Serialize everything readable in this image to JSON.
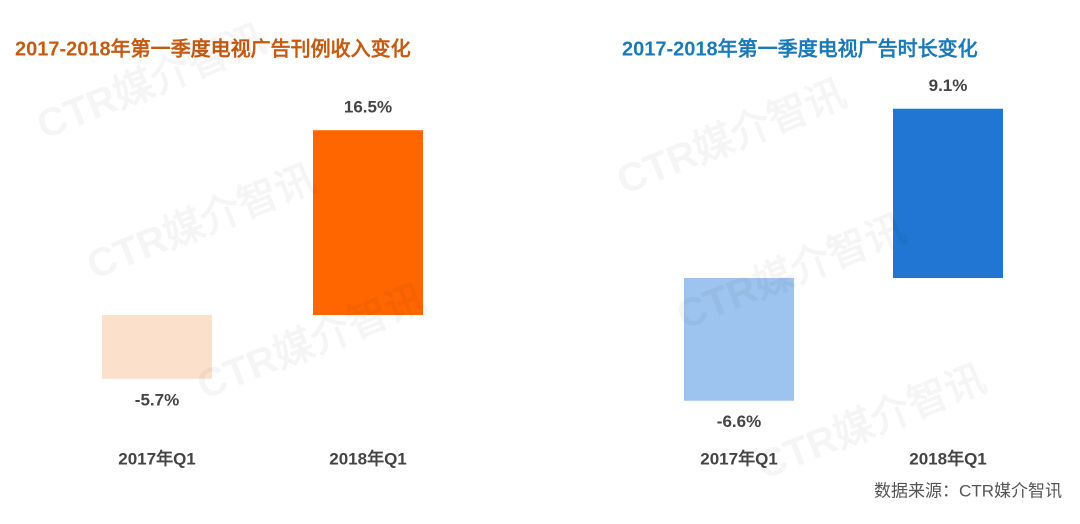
{
  "chart_data": [
    {
      "type": "bar",
      "title": "2017-2018年第一季度电视广告刊例收入变化",
      "title_color": "#c55a11",
      "categories": [
        "2017年Q1",
        "2018年Q1"
      ],
      "values": [
        -5.7,
        16.5
      ],
      "value_labels": [
        "-5.7%",
        "16.5%"
      ],
      "colors": [
        "#fbe0cc",
        "#ff6600"
      ]
    },
    {
      "type": "bar",
      "title": "2017-2018年第一季度电视广告时长变化",
      "title_color": "#1a7ab8",
      "categories": [
        "2017年Q1",
        "2018年Q1"
      ],
      "values": [
        -6.6,
        9.1
      ],
      "value_labels": [
        "-6.6%",
        "9.1%"
      ],
      "colors": [
        "#9dc3ef",
        "#2076d2"
      ]
    }
  ],
  "watermark": "CTR媒介智讯",
  "source": "数据来源：CTR媒介智讯"
}
